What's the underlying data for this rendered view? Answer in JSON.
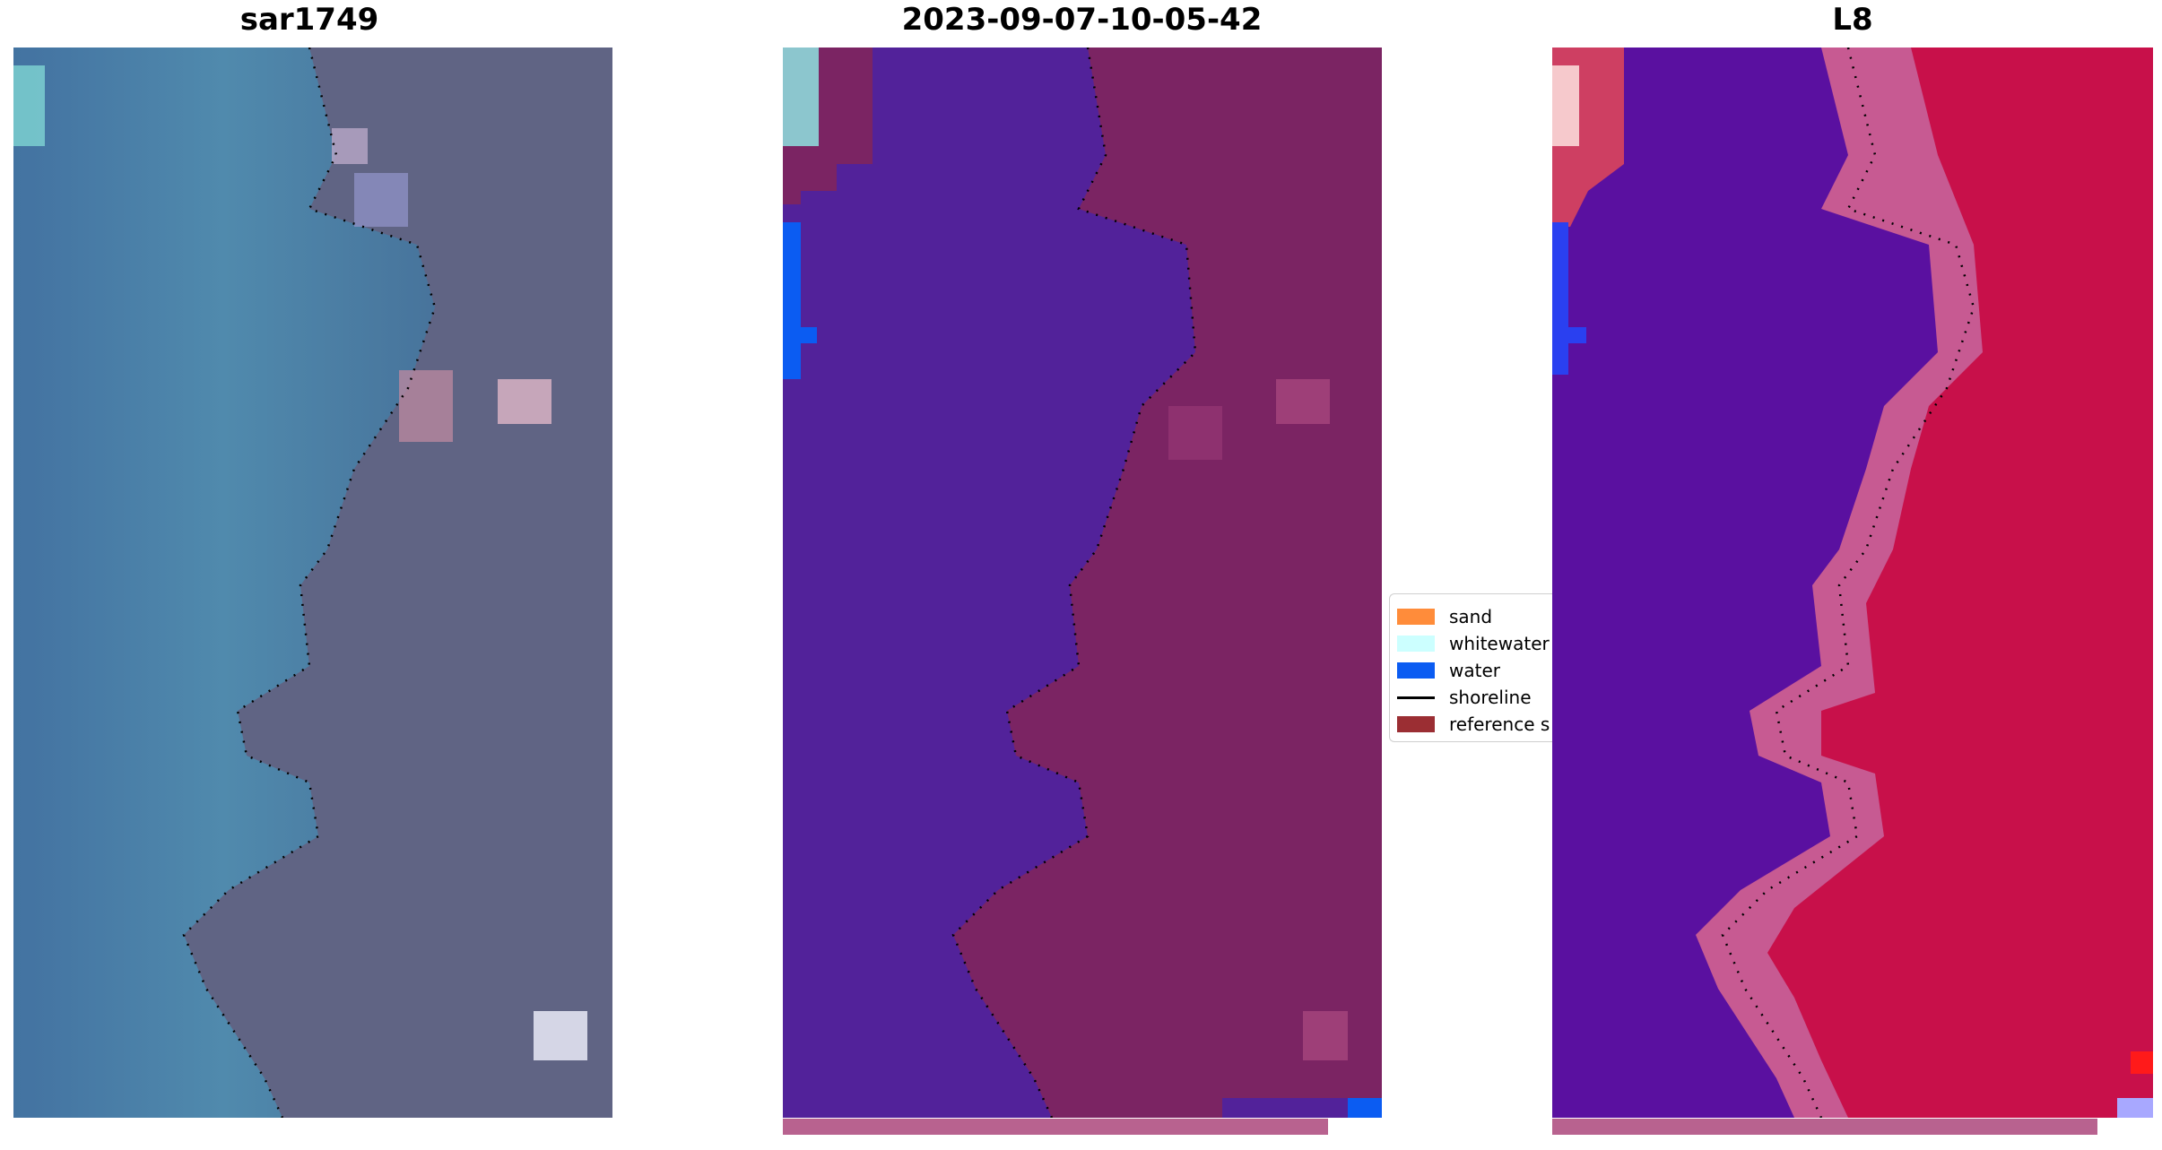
{
  "panels": [
    {
      "title": "sar1749",
      "image": "true-color satellite composite"
    },
    {
      "title": "2023-09-07-10-05-42",
      "image": "classified image"
    },
    {
      "title": "L8",
      "image": "water index map"
    }
  ],
  "legend": {
    "items": [
      {
        "label": "sand",
        "color": "#ff8c3a",
        "kind": "swatch"
      },
      {
        "label": "whitewater",
        "color": "#ccffff",
        "kind": "swatch"
      },
      {
        "label": "water",
        "color": "#0b5cf2",
        "kind": "swatch"
      },
      {
        "label": "shoreline",
        "color": "#000000",
        "kind": "line"
      },
      {
        "label": "reference s",
        "color": "#9b2e33",
        "kind": "swatch"
      }
    ]
  },
  "colors": {
    "sea_rgb": "#3f6c9c",
    "land_rgb": "#5b5f80",
    "water_class": "#52229a",
    "land_class": "#7b2463",
    "water_index": "#5a10a0",
    "land_index": "#c8104a",
    "bar": "#b8628f"
  }
}
